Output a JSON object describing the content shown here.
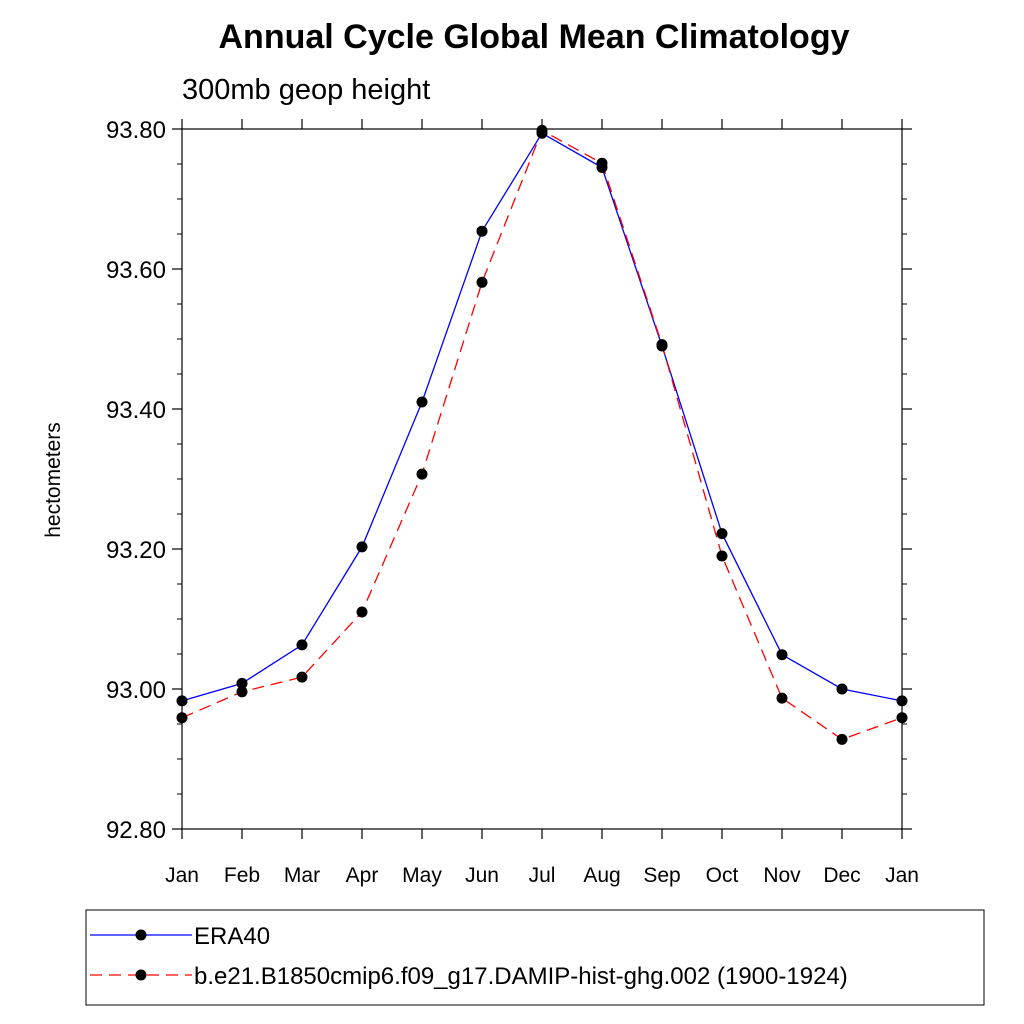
{
  "chart_data": {
    "type": "line",
    "title": "Annual Cycle Global Mean Climatology",
    "subtitle": "300mb geop height",
    "xlabel": "",
    "ylabel": "hectometers",
    "categories": [
      "Jan",
      "Feb",
      "Mar",
      "Apr",
      "May",
      "Jun",
      "Jul",
      "Aug",
      "Sep",
      "Oct",
      "Nov",
      "Dec",
      "Jan"
    ],
    "y_ticks": [
      "92.80",
      "93.00",
      "93.20",
      "93.40",
      "93.60",
      "93.80"
    ],
    "ylim": [
      92.8,
      93.8
    ],
    "grid": false,
    "legend_position": "bottom",
    "series": [
      {
        "name": "ERA40",
        "color": "#0000ff",
        "dash": "solid",
        "marker": "filled-circle",
        "values": [
          92.983,
          93.008,
          93.063,
          93.203,
          93.41,
          93.654,
          93.794,
          93.745,
          93.49,
          93.222,
          93.049,
          93.0,
          92.983
        ]
      },
      {
        "name": "b.e21.B1850cmip6.f09_g17.DAMIP-hist-ghg.002 (1900-1924)",
        "color": "#ff0000",
        "dash": "dashed",
        "marker": "filled-circle",
        "values": [
          92.959,
          92.996,
          93.017,
          93.11,
          93.307,
          93.581,
          93.798,
          93.751,
          93.492,
          93.19,
          92.987,
          92.928,
          92.959
        ]
      }
    ]
  }
}
